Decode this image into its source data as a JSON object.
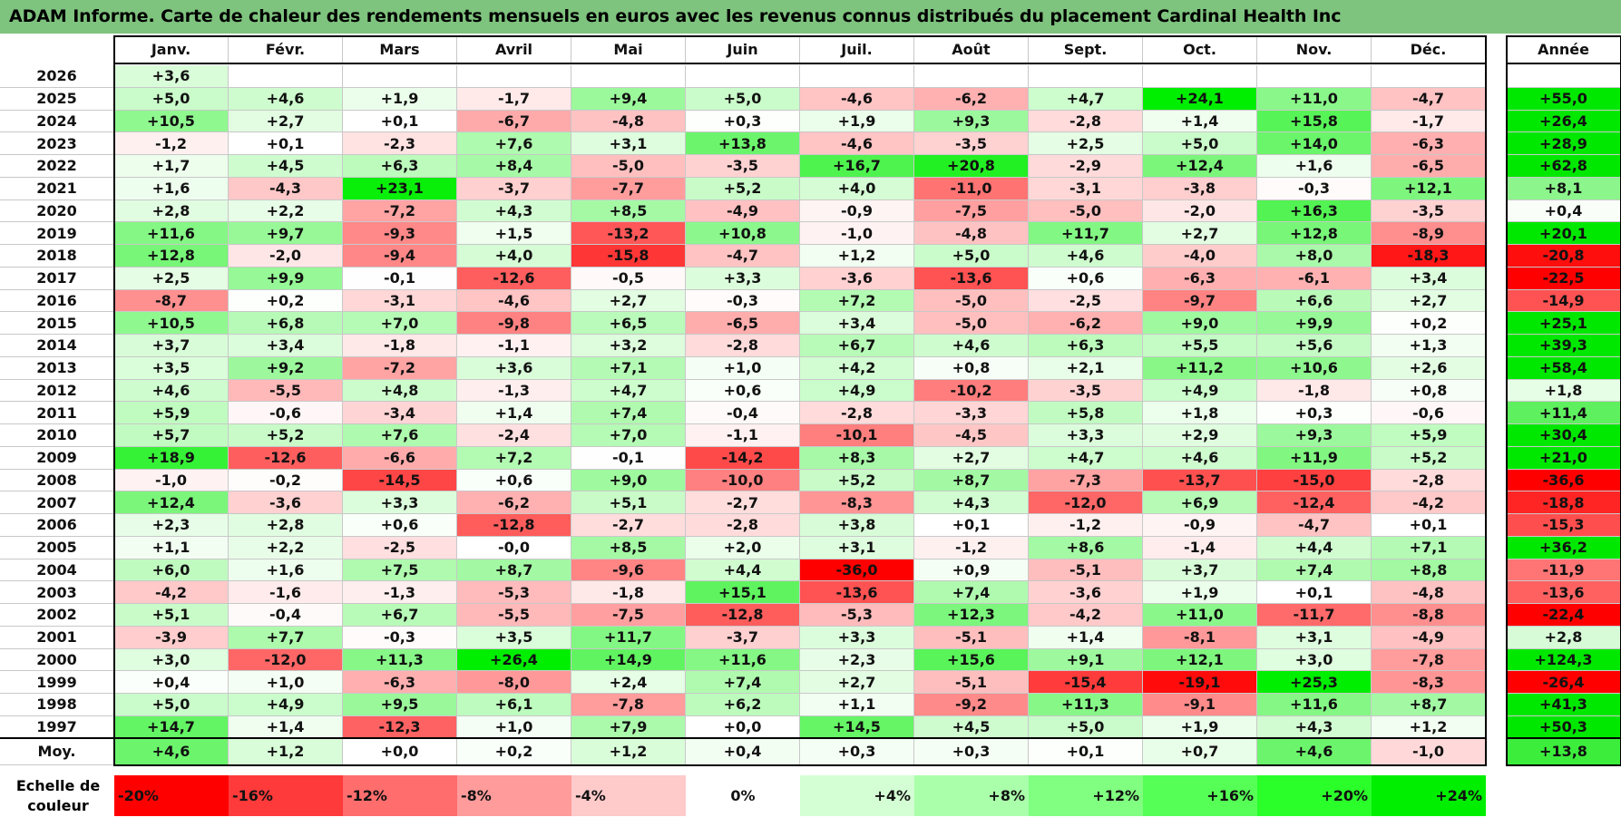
{
  "title": "ADAM Informe. Carte de chaleur des rendements mensuels en euros avec les revenus connus distribués du placement Cardinal Health Inc",
  "chart_data": {
    "type": "heatmap",
    "title": "ADAM Informe. Carte de chaleur des rendements mensuels en euros avec les revenus connus distribués du placement Cardinal Health Inc",
    "columns": [
      "Janv.",
      "Févr.",
      "Mars",
      "Avril",
      "Mai",
      "Juin",
      "Juil.",
      "Août",
      "Sept.",
      "Oct.",
      "Nov.",
      "Déc."
    ],
    "year_column": "Année",
    "rows": [
      {
        "year": "2026",
        "values": [
          "+3,6",
          "",
          "",
          "",
          "",
          "",
          "",
          "",
          "",
          "",
          "",
          ""
        ],
        "annual": ""
      },
      {
        "year": "2025",
        "values": [
          "+5,0",
          "+4,6",
          "+1,9",
          "-1,7",
          "+9,4",
          "+5,0",
          "-4,6",
          "-6,2",
          "+4,7",
          "+24,1",
          "+11,0",
          "-4,7"
        ],
        "annual": "+55,0"
      },
      {
        "year": "2024",
        "values": [
          "+10,5",
          "+2,7",
          "+0,1",
          "-6,7",
          "-4,8",
          "+0,3",
          "+1,9",
          "+9,3",
          "-2,8",
          "+1,4",
          "+15,8",
          "-1,7"
        ],
        "annual": "+26,4"
      },
      {
        "year": "2023",
        "values": [
          "-1,2",
          "+0,1",
          "-2,3",
          "+7,6",
          "+3,1",
          "+13,8",
          "-4,6",
          "-3,5",
          "+2,5",
          "+5,0",
          "+14,0",
          "-6,3"
        ],
        "annual": "+28,9"
      },
      {
        "year": "2022",
        "values": [
          "+1,7",
          "+4,5",
          "+6,3",
          "+8,4",
          "-5,0",
          "-3,5",
          "+16,7",
          "+20,8",
          "-2,9",
          "+12,4",
          "+1,6",
          "-6,5"
        ],
        "annual": "+62,8"
      },
      {
        "year": "2021",
        "values": [
          "+1,6",
          "-4,3",
          "+23,1",
          "-3,7",
          "-7,7",
          "+5,2",
          "+4,0",
          "-11,0",
          "-3,1",
          "-3,8",
          "-0,3",
          "+12,1"
        ],
        "annual": "+8,1"
      },
      {
        "year": "2020",
        "values": [
          "+2,8",
          "+2,2",
          "-7,2",
          "+4,3",
          "+8,5",
          "-4,9",
          "-0,9",
          "-7,5",
          "-5,0",
          "-2,0",
          "+16,3",
          "-3,5"
        ],
        "annual": "+0,4"
      },
      {
        "year": "2019",
        "values": [
          "+11,6",
          "+9,7",
          "-9,3",
          "+1,5",
          "-13,2",
          "+10,8",
          "-1,0",
          "-4,8",
          "+11,7",
          "+2,7",
          "+12,8",
          "-8,9"
        ],
        "annual": "+20,1"
      },
      {
        "year": "2018",
        "values": [
          "+12,8",
          "-2,0",
          "-9,4",
          "+4,0",
          "-15,8",
          "-4,7",
          "+1,2",
          "+5,0",
          "+4,6",
          "-4,0",
          "+8,0",
          "-18,3"
        ],
        "annual": "-20,8"
      },
      {
        "year": "2017",
        "values": [
          "+2,5",
          "+9,9",
          "-0,1",
          "-12,6",
          "-0,5",
          "+3,3",
          "-3,6",
          "-13,6",
          "+0,6",
          "-6,3",
          "-6,1",
          "+3,4"
        ],
        "annual": "-22,5"
      },
      {
        "year": "2016",
        "values": [
          "-8,7",
          "+0,2",
          "-3,1",
          "-4,6",
          "+2,7",
          "-0,3",
          "+7,2",
          "-5,0",
          "-2,5",
          "-9,7",
          "+6,6",
          "+2,7"
        ],
        "annual": "-14,9"
      },
      {
        "year": "2015",
        "values": [
          "+10,5",
          "+6,8",
          "+7,0",
          "-9,8",
          "+6,5",
          "-6,5",
          "+3,4",
          "-5,0",
          "-6,2",
          "+9,0",
          "+9,9",
          "+0,2"
        ],
        "annual": "+25,1"
      },
      {
        "year": "2014",
        "values": [
          "+3,7",
          "+3,4",
          "-1,8",
          "-1,1",
          "+3,2",
          "-2,8",
          "+6,7",
          "+4,6",
          "+6,3",
          "+5,5",
          "+5,6",
          "+1,3"
        ],
        "annual": "+39,3"
      },
      {
        "year": "2013",
        "values": [
          "+3,5",
          "+9,2",
          "-7,2",
          "+3,6",
          "+7,1",
          "+1,0",
          "+4,2",
          "+0,8",
          "+2,1",
          "+11,2",
          "+10,6",
          "+2,6"
        ],
        "annual": "+58,4"
      },
      {
        "year": "2012",
        "values": [
          "+4,6",
          "-5,5",
          "+4,8",
          "-1,3",
          "+4,7",
          "+0,6",
          "+4,9",
          "-10,2",
          "-3,5",
          "+4,9",
          "-1,8",
          "+0,8"
        ],
        "annual": "+1,8"
      },
      {
        "year": "2011",
        "values": [
          "+5,9",
          "-0,6",
          "-3,4",
          "+1,4",
          "+7,4",
          "-0,4",
          "-2,8",
          "-3,3",
          "+5,8",
          "+1,8",
          "+0,3",
          "-0,6"
        ],
        "annual": "+11,4"
      },
      {
        "year": "2010",
        "values": [
          "+5,7",
          "+5,2",
          "+7,6",
          "-2,4",
          "+7,0",
          "-1,1",
          "-10,1",
          "-4,5",
          "+3,3",
          "+2,9",
          "+9,3",
          "+5,9"
        ],
        "annual": "+30,4"
      },
      {
        "year": "2009",
        "values": [
          "+18,9",
          "-12,6",
          "-6,6",
          "+7,2",
          "-0,1",
          "-14,2",
          "+8,3",
          "+2,7",
          "+4,7",
          "+4,6",
          "+11,9",
          "+5,2"
        ],
        "annual": "+21,0"
      },
      {
        "year": "2008",
        "values": [
          "-1,0",
          "-0,2",
          "-14,5",
          "+0,6",
          "+9,0",
          "-10,0",
          "+5,2",
          "+8,7",
          "-7,3",
          "-13,7",
          "-15,0",
          "-2,8"
        ],
        "annual": "-36,6"
      },
      {
        "year": "2007",
        "values": [
          "+12,4",
          "-3,6",
          "+3,3",
          "-6,2",
          "+5,1",
          "-2,7",
          "-8,3",
          "+4,3",
          "-12,0",
          "+6,9",
          "-12,4",
          "-4,2"
        ],
        "annual": "-18,8"
      },
      {
        "year": "2006",
        "values": [
          "+2,3",
          "+2,8",
          "+0,6",
          "-12,8",
          "-2,7",
          "-2,8",
          "+3,8",
          "+0,1",
          "-1,2",
          "-0,9",
          "-4,7",
          "+0,1"
        ],
        "annual": "-15,3"
      },
      {
        "year": "2005",
        "values": [
          "+1,1",
          "+2,2",
          "-2,5",
          "-0,0",
          "+8,5",
          "+2,0",
          "+3,1",
          "-1,2",
          "+8,6",
          "-1,4",
          "+4,4",
          "+7,1"
        ],
        "annual": "+36,2"
      },
      {
        "year": "2004",
        "values": [
          "+6,0",
          "+1,6",
          "+7,5",
          "+8,7",
          "-9,6",
          "+4,4",
          "-36,0",
          "+0,9",
          "-5,1",
          "+3,7",
          "+7,4",
          "+8,8"
        ],
        "annual": "-11,9"
      },
      {
        "year": "2003",
        "values": [
          "-4,2",
          "-1,6",
          "-1,3",
          "-5,3",
          "-1,8",
          "+15,1",
          "-13,6",
          "+7,4",
          "-3,6",
          "+1,9",
          "+0,1",
          "-4,8"
        ],
        "annual": "-13,6"
      },
      {
        "year": "2002",
        "values": [
          "+5,1",
          "-0,4",
          "+6,7",
          "-5,5",
          "-7,5",
          "-12,8",
          "-5,3",
          "+12,3",
          "-4,2",
          "+11,0",
          "-11,7",
          "-8,8"
        ],
        "annual": "-22,4"
      },
      {
        "year": "2001",
        "values": [
          "-3,9",
          "+7,7",
          "-0,3",
          "+3,5",
          "+11,7",
          "-3,7",
          "+3,3",
          "-5,1",
          "+1,4",
          "-8,1",
          "+3,1",
          "-4,9"
        ],
        "annual": "+2,8"
      },
      {
        "year": "2000",
        "values": [
          "+3,0",
          "-12,0",
          "+11,3",
          "+26,4",
          "+14,9",
          "+11,6",
          "+2,3",
          "+15,6",
          "+9,1",
          "+12,1",
          "+3,0",
          "-7,8"
        ],
        "annual": "+124,3"
      },
      {
        "year": "1999",
        "values": [
          "+0,4",
          "+1,0",
          "-6,3",
          "-8,0",
          "+2,4",
          "+7,4",
          "+2,7",
          "-5,1",
          "-15,4",
          "-19,1",
          "+25,3",
          "-8,3"
        ],
        "annual": "-26,4"
      },
      {
        "year": "1998",
        "values": [
          "+5,0",
          "+4,9",
          "+9,5",
          "+6,1",
          "-7,8",
          "+6,2",
          "+1,1",
          "-9,2",
          "+11,3",
          "-9,1",
          "+11,6",
          "+8,7"
        ],
        "annual": "+41,3"
      },
      {
        "year": "1997",
        "values": [
          "+14,7",
          "+1,4",
          "-12,3",
          "+1,0",
          "+7,9",
          "+0,0",
          "+14,5",
          "+4,5",
          "+5,0",
          "+1,9",
          "+4,3",
          "+1,2"
        ],
        "annual": "+50,3"
      }
    ],
    "average": {
      "label": "Moy.",
      "values": [
        "+4,6",
        "+1,2",
        "+0,0",
        "+0,2",
        "+1,2",
        "+0,4",
        "+0,3",
        "+0,3",
        "+0,1",
        "+0,7",
        "+4,6",
        "-1,0"
      ],
      "annual": "+13,8"
    },
    "legend": {
      "label": "Echelle de couleur",
      "items": [
        {
          "text": "-20%",
          "value": -20,
          "color": "#ff0000"
        },
        {
          "text": "-16%",
          "value": -16,
          "color": "#ff3a3a"
        },
        {
          "text": "-12%",
          "value": -12,
          "color": "#ff6d6d"
        },
        {
          "text": "-8%",
          "value": -8,
          "color": "#ff9b9b"
        },
        {
          "text": "-4%",
          "value": -4,
          "color": "#ffcaca"
        },
        {
          "text": "0%",
          "value": 0,
          "color": "#ffffff"
        },
        {
          "text": "+4%",
          "value": 4,
          "color": "#d4ffd4"
        },
        {
          "text": "+8%",
          "value": 8,
          "color": "#aaffaa"
        },
        {
          "text": "+12%",
          "value": 12,
          "color": "#80ff80"
        },
        {
          "text": "+16%",
          "value": 16,
          "color": "#55ff55"
        },
        {
          "text": "+20%",
          "value": 20,
          "color": "#2aff2a"
        },
        {
          "text": "+24%",
          "value": 24,
          "color": "#00ee00"
        }
      ]
    }
  }
}
